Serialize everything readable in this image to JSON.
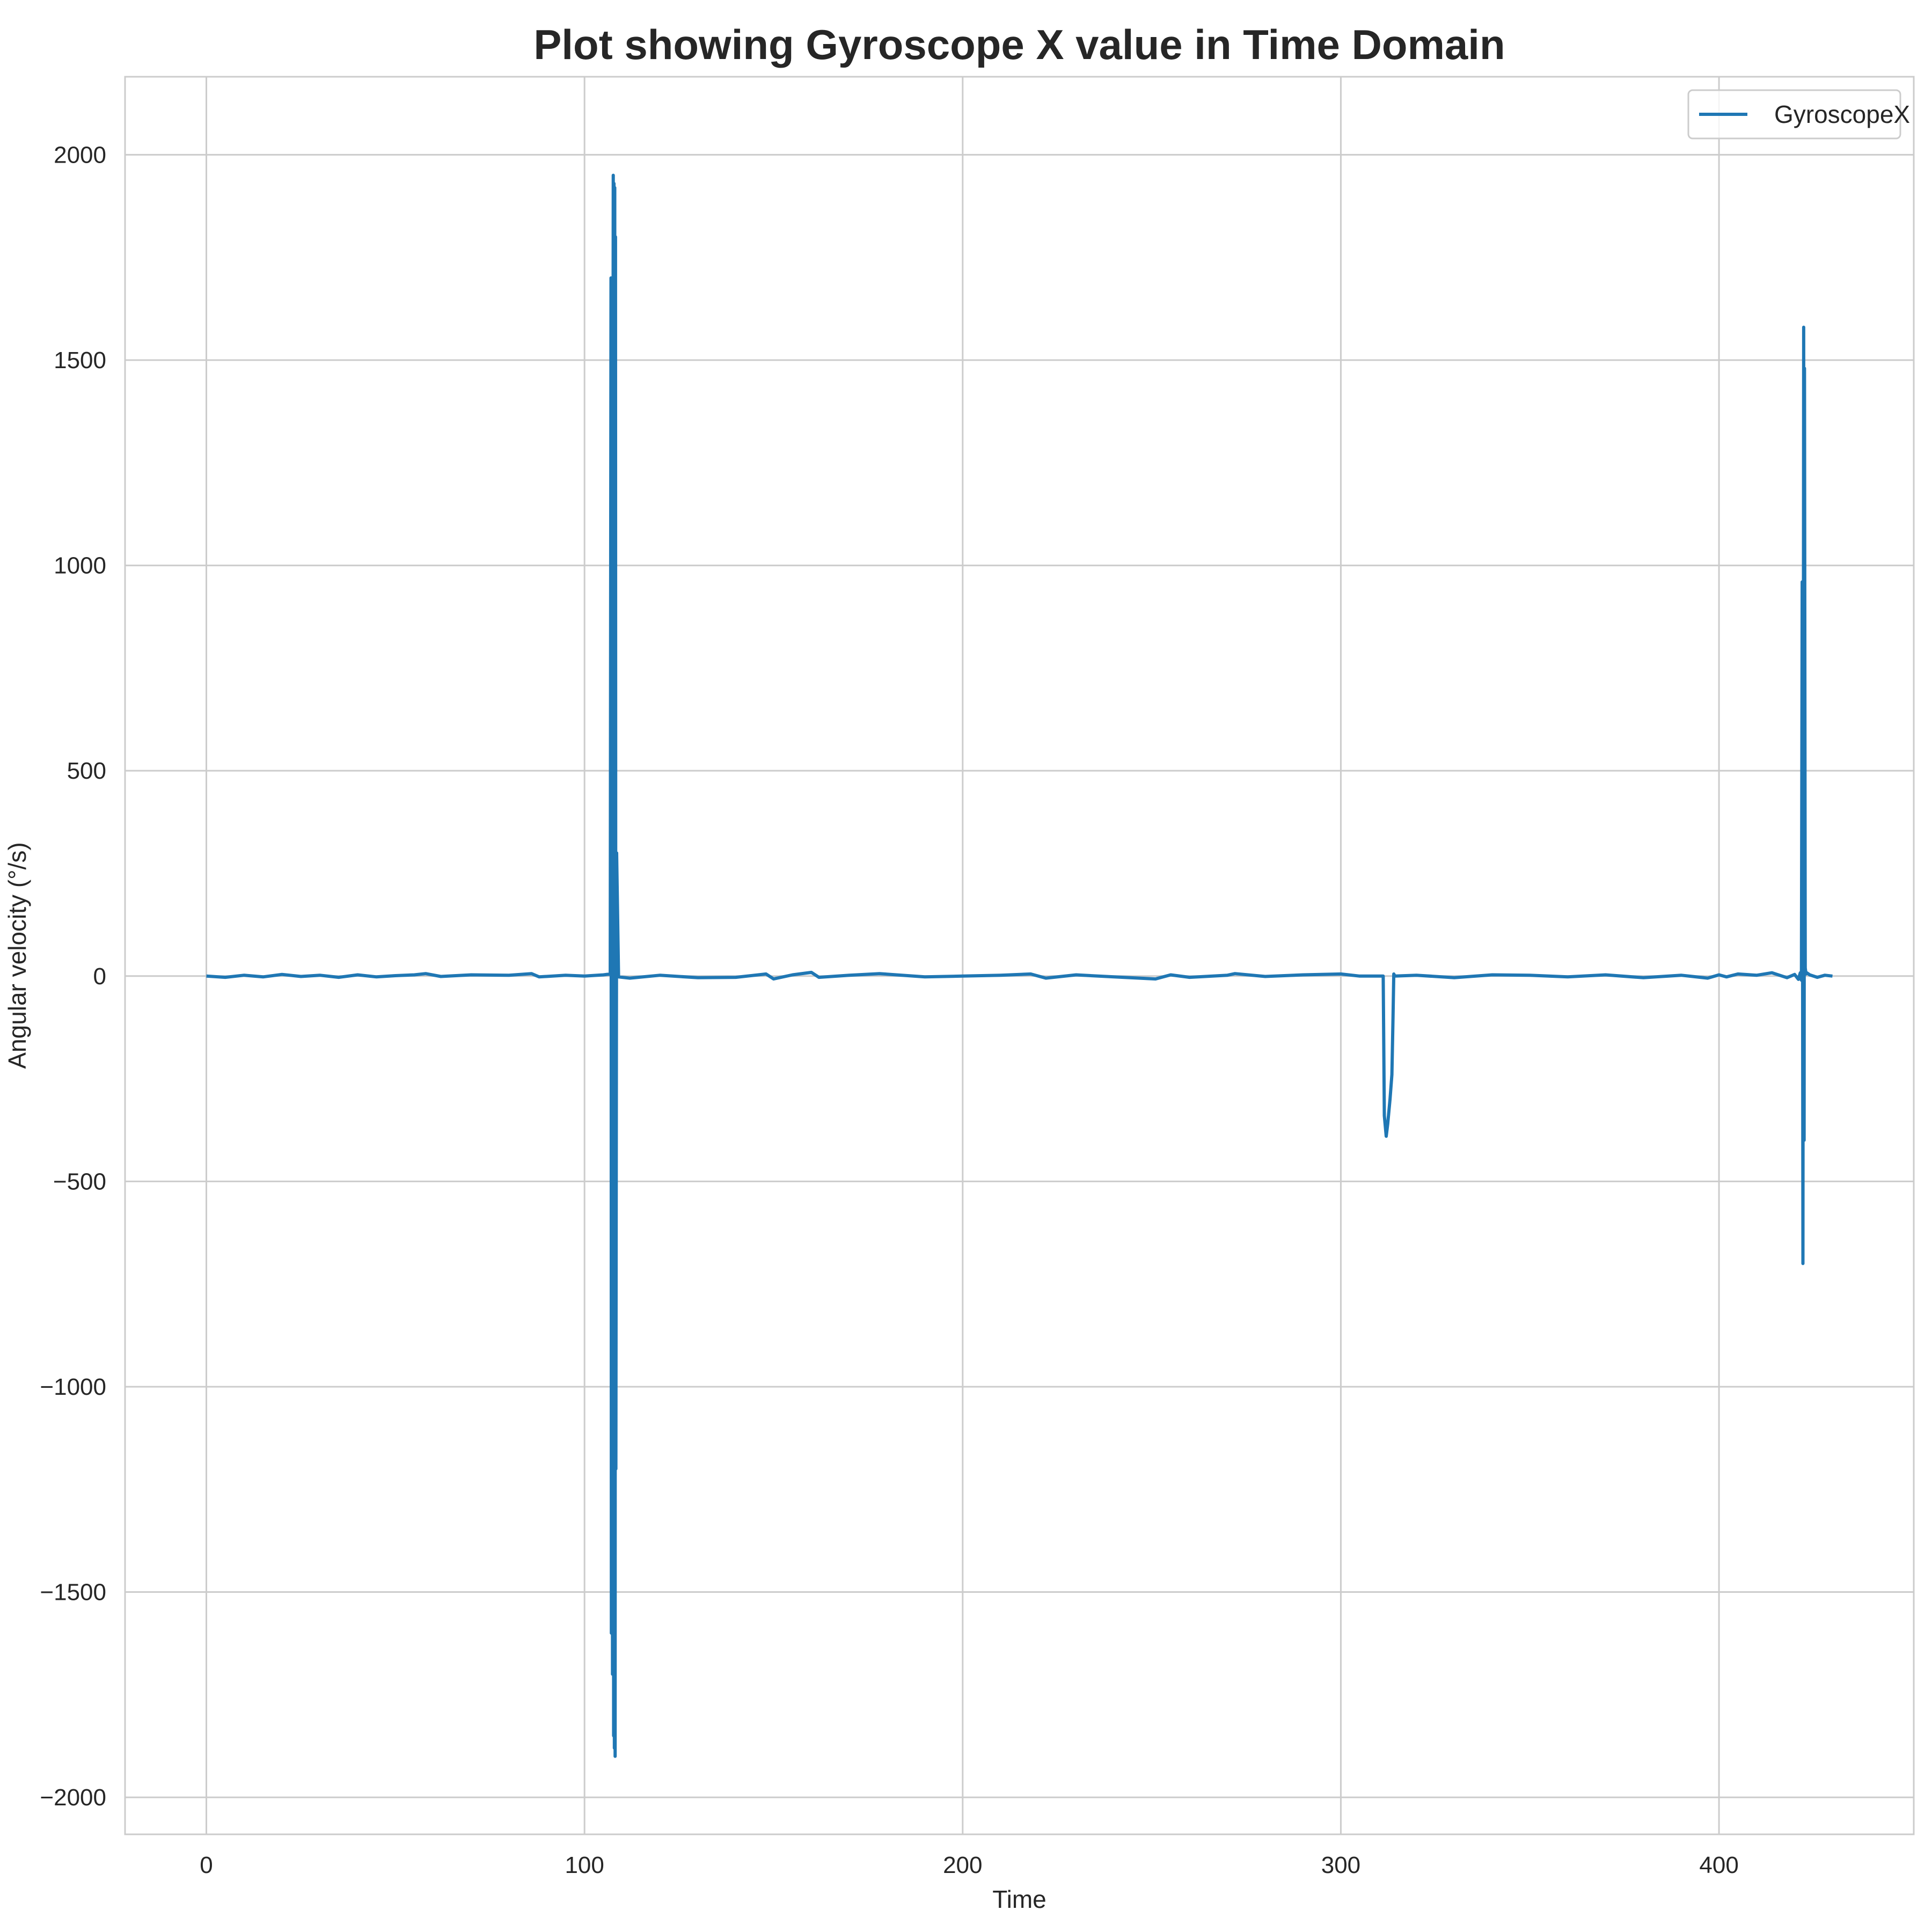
{
  "chart_data": {
    "type": "line",
    "title": "Plot showing Gyroscope X value in Time Domain",
    "xlabel": "Time",
    "ylabel": "Angular velocity (°/s)",
    "xlim": [
      -21.5,
      451.5
    ],
    "ylim": [
      -2090,
      2190
    ],
    "xticks": [
      0,
      100,
      200,
      300,
      400
    ],
    "xtick_labels": [
      "0",
      "100",
      "200",
      "300",
      "400"
    ],
    "yticks": [
      -2000,
      -1500,
      -1000,
      -500,
      0,
      500,
      1000,
      1500,
      2000
    ],
    "ytick_labels": [
      "−2000",
      "−1500",
      "−1000",
      "−500",
      "0",
      "500",
      "1000",
      "1500",
      "2000"
    ],
    "grid": true,
    "legend_position": "top-right",
    "series": [
      {
        "name": "GyroscopeX",
        "color": "#1f77b4",
        "x": [
          0,
          5,
          10,
          15,
          20,
          25,
          30,
          35,
          40,
          45,
          50,
          55,
          58,
          62,
          70,
          80,
          86,
          88,
          95,
          100,
          105,
          106.8,
          107.0,
          107.1,
          107.2,
          107.3,
          107.4,
          107.5,
          107.6,
          107.7,
          107.8,
          107.9,
          108.0,
          108.1,
          108.2,
          108.3,
          108.5,
          109,
          112,
          120,
          130,
          140,
          148,
          150,
          155,
          160,
          162,
          170,
          178,
          190,
          200,
          210,
          218,
          222,
          230,
          240,
          251,
          255,
          260,
          270,
          272,
          280,
          290,
          300,
          305,
          311.2,
          311.5,
          312.0,
          312.4,
          313.0,
          313.5,
          313.8,
          314.0,
          314.3,
          320,
          330,
          340,
          350,
          360,
          370,
          380,
          390,
          397,
          400,
          402,
          405,
          410,
          414,
          418,
          420,
          421,
          421.5,
          421.8,
          422.0,
          422.2,
          422.4,
          422.5,
          422.6,
          422.8,
          423.0,
          423.2,
          424,
          426,
          428,
          430
        ],
        "y": [
          0,
          -3,
          2,
          -2,
          4,
          -1,
          2,
          -3,
          3,
          -2,
          1,
          3,
          6,
          -1,
          3,
          2,
          6,
          -2,
          2,
          0,
          3,
          5,
          1700,
          -1600,
          1400,
          330,
          -1700,
          1000,
          1950,
          -1850,
          1930,
          -1880,
          1920,
          -1900,
          1800,
          -1200,
          300,
          -2,
          -5,
          2,
          -4,
          -3,
          5,
          -7,
          3,
          9,
          -3,
          2,
          6,
          -2,
          0,
          2,
          5,
          -5,
          3,
          -2,
          -7,
          3,
          -3,
          2,
          6,
          -1,
          3,
          5,
          0,
          0,
          -340,
          -390,
          -360,
          -300,
          -240,
          -100,
          5,
          0,
          2,
          -4,
          3,
          2,
          -2,
          3,
          -4,
          2,
          -5,
          3,
          -2,
          5,
          2,
          8,
          -4,
          4,
          -8,
          8,
          -10,
          960,
          -700,
          1580,
          -400,
          1480,
          20,
          5,
          8,
          3,
          -3,
          2,
          0
        ]
      }
    ]
  }
}
